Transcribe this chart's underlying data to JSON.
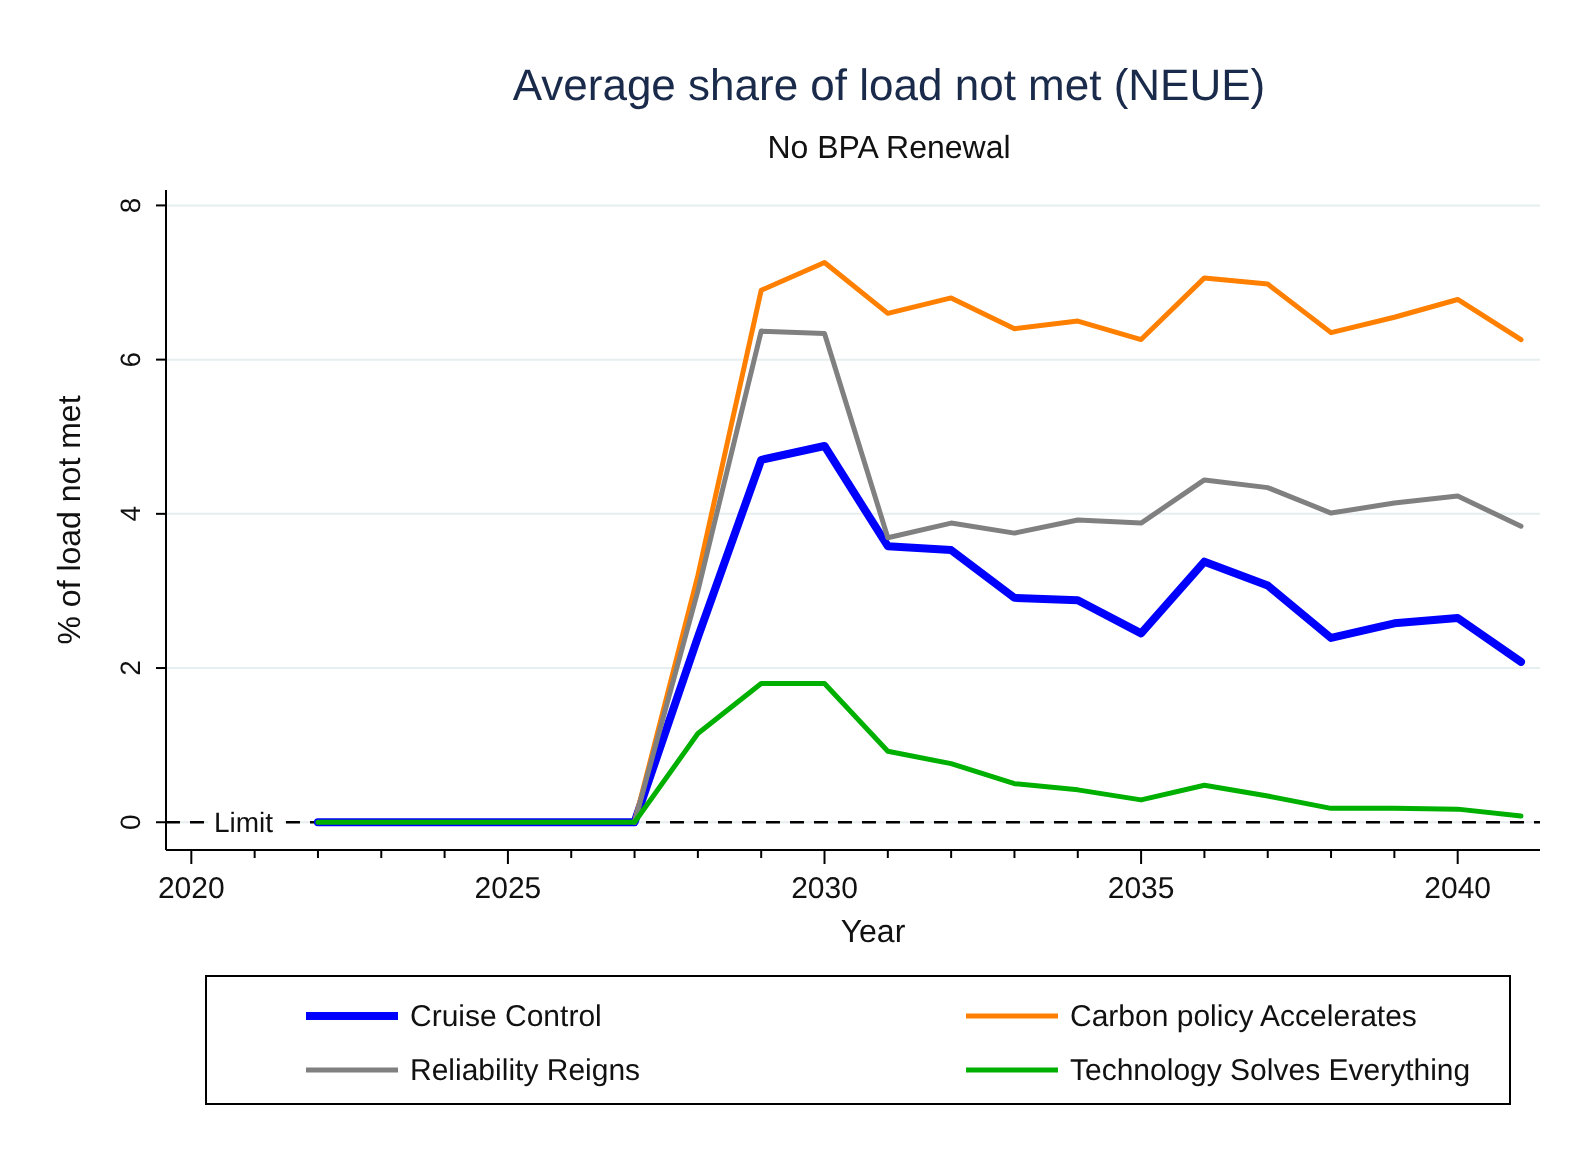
{
  "chart_data": {
    "type": "line",
    "title": "Average share of load not met (NEUE)",
    "subtitle": "No BPA Renewal",
    "xlabel": "Year",
    "ylabel": "% of load not met",
    "x": [
      2022,
      2023,
      2024,
      2025,
      2026,
      2027,
      2028,
      2029,
      2030,
      2031,
      2032,
      2033,
      2034,
      2035,
      2036,
      2037,
      2038,
      2039,
      2040,
      2041
    ],
    "series": [
      {
        "name": "Cruise Control",
        "color": "#0000ff",
        "values": [
          0,
          0,
          0,
          0,
          0,
          0,
          2.4,
          4.7,
          4.88,
          3.58,
          3.53,
          2.91,
          2.88,
          2.45,
          3.38,
          3.07,
          2.39,
          2.58,
          2.65,
          2.08
        ]
      },
      {
        "name": "Carbon policy Accelerates",
        "color": "#ff8000",
        "values": [
          null,
          null,
          null,
          null,
          null,
          0,
          3.2,
          6.9,
          7.26,
          6.6,
          6.8,
          6.4,
          6.5,
          6.26,
          7.06,
          6.98,
          6.35,
          6.55,
          6.78,
          6.26
        ]
      },
      {
        "name": "Reliability Reigns",
        "color": "#808080",
        "values": [
          null,
          null,
          null,
          null,
          null,
          0,
          3.0,
          6.37,
          6.34,
          3.69,
          3.88,
          3.75,
          3.92,
          3.88,
          4.44,
          4.34,
          4.01,
          4.14,
          4.23,
          3.84
        ]
      },
      {
        "name": "Technology Solves Everything",
        "color": "#00b000",
        "values": [
          0,
          0,
          0,
          0,
          0,
          0,
          1.15,
          1.8,
          1.8,
          0.92,
          0.76,
          0.5,
          0.42,
          0.29,
          0.48,
          0.34,
          0.18,
          0.18,
          0.17,
          0.08
        ]
      }
    ],
    "xlim": [
      2019.6,
      2041.3
    ],
    "ylim": [
      -0.36,
      8.2
    ],
    "xticks": [
      2020,
      {
        "value": 2021,
        "label": null
      },
      {
        "value": 2022,
        "label": null
      },
      {
        "value": 2023,
        "label": null
      },
      {
        "value": 2024,
        "label": null
      },
      2025,
      {
        "value": 2026,
        "label": null
      },
      {
        "value": 2027,
        "label": null
      },
      {
        "value": 2028,
        "label": null
      },
      {
        "value": 2029,
        "label": null
      },
      2030,
      {
        "value": 2031,
        "label": null
      },
      {
        "value": 2032,
        "label": null
      },
      {
        "value": 2033,
        "label": null
      },
      {
        "value": 2034,
        "label": null
      },
      2035,
      {
        "value": 2036,
        "label": null
      },
      {
        "value": 2037,
        "label": null
      },
      {
        "value": 2038,
        "label": null
      },
      {
        "value": 2039,
        "label": null
      },
      2040
    ],
    "yticks": [
      0,
      2,
      4,
      6,
      8
    ],
    "ref_lines": [
      {
        "axis": "y",
        "value": 0,
        "label": "Limit",
        "color": "#000000",
        "line_style": "dashed"
      }
    ],
    "grid": "y",
    "legend": "bottom",
    "marker": "none",
    "line_style": "solid"
  }
}
